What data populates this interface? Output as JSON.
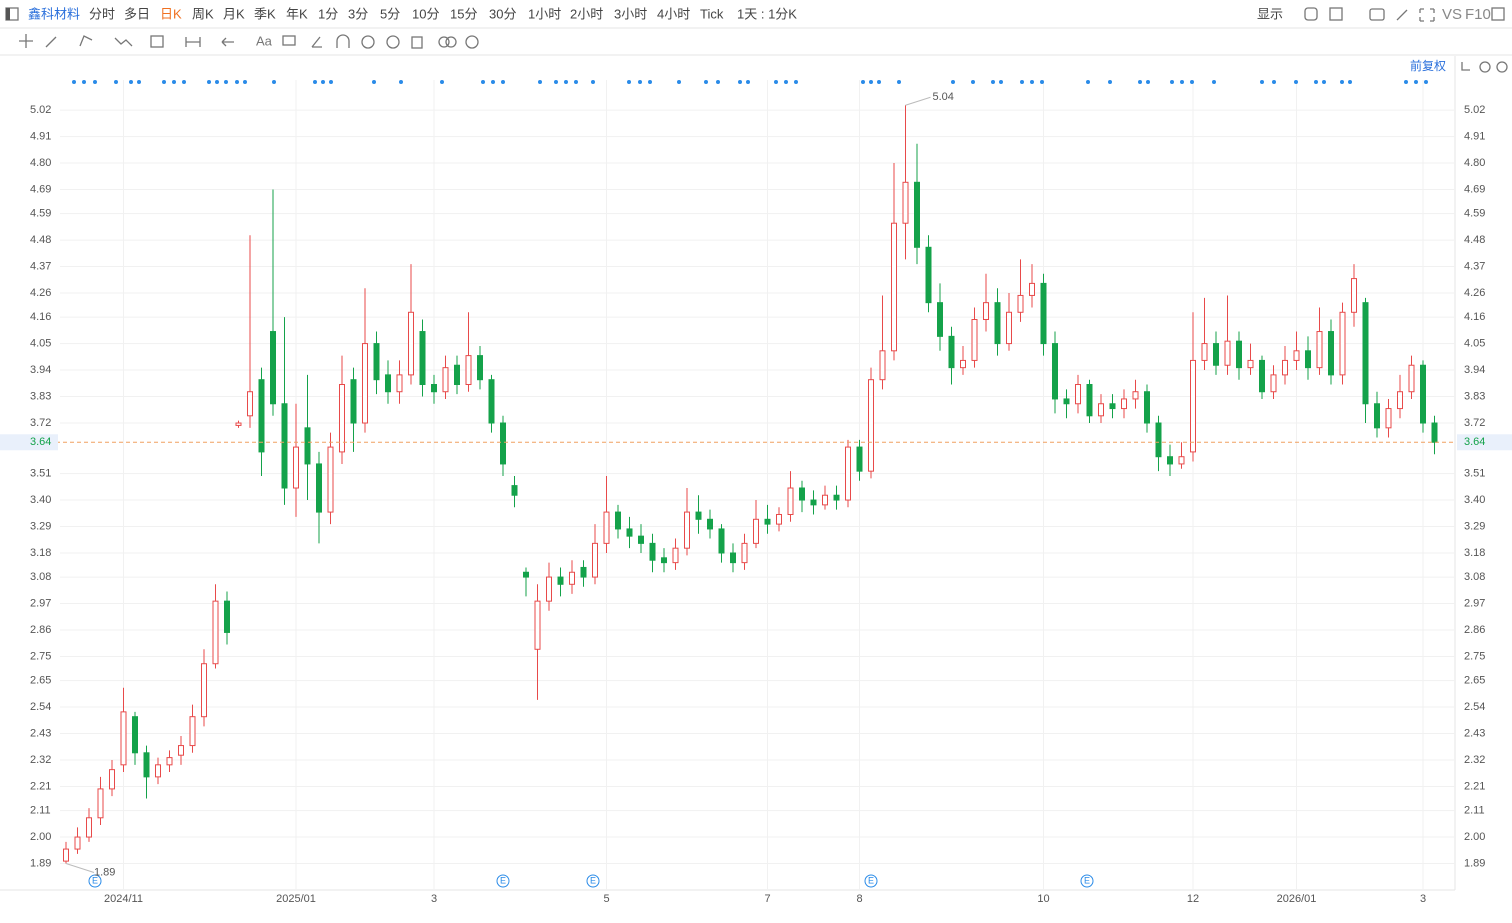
{
  "toolbar": {
    "symbol": "鑫科材料",
    "periods": [
      "分时",
      "多日",
      "日K",
      "周K",
      "月K",
      "季K",
      "年K",
      "1分",
      "3分",
      "5分",
      "10分",
      "15分",
      "30分",
      "1小时",
      "2小时",
      "3小时",
      "4小时",
      "Tick",
      "1天 : 1分K"
    ],
    "active_period": "日K",
    "display": "显示",
    "vs": "VS",
    "f10": "F10",
    "text_tool": "Aa",
    "adjust": "前复权"
  },
  "chart_data": {
    "type": "candlestick",
    "up_color": "#e84a4a",
    "down_color": "#14a24a",
    "last_price": 3.64,
    "last_price_color": "#f0a060",
    "high_label": 5.04,
    "low_label": 1.89,
    "event_label": "E",
    "grid": true,
    "ylim": [
      1.78,
      5.145
    ],
    "yticks": [
      5.02,
      4.91,
      {
        "value": 4.8,
        "label": "4.80"
      },
      4.69,
      4.59,
      4.48,
      4.37,
      4.26,
      4.16,
      4.05,
      3.94,
      3.83,
      3.72,
      3.51,
      {
        "value": 3.4,
        "label": "3.40"
      },
      3.29,
      3.18,
      3.08,
      2.97,
      2.86,
      2.75,
      2.65,
      2.54,
      2.43,
      2.32,
      2.21,
      2.11,
      {
        "value": 2,
        "label": "2.00"
      },
      1.89
    ],
    "categories": [
      null,
      null,
      null,
      null,
      null,
      "2024/11",
      null,
      null,
      null,
      null,
      null,
      null,
      null,
      null,
      null,
      null,
      null,
      null,
      null,
      null,
      "2025/01",
      null,
      null,
      null,
      null,
      null,
      null,
      null,
      null,
      null,
      null,
      null,
      "3",
      null,
      null,
      null,
      null,
      null,
      null,
      null,
      null,
      null,
      null,
      null,
      null,
      null,
      null,
      "5",
      null,
      null,
      null,
      null,
      null,
      null,
      null,
      null,
      null,
      null,
      null,
      null,
      null,
      "7",
      null,
      null,
      null,
      null,
      null,
      null,
      null,
      "8",
      null,
      null,
      null,
      null,
      null,
      null,
      null,
      null,
      null,
      null,
      null,
      null,
      null,
      null,
      null,
      "10",
      null,
      null,
      null,
      null,
      null,
      null,
      null,
      null,
      null,
      null,
      null,
      null,
      "12",
      null,
      null,
      null,
      null,
      null,
      null,
      null,
      null,
      "2026/01",
      null,
      null,
      null,
      null,
      null,
      null,
      null,
      null,
      null,
      null,
      "3",
      null
    ],
    "open": [
      1.9,
      1.95,
      2.0,
      2.08,
      2.2,
      2.3,
      2.5,
      2.35,
      2.25,
      2.3,
      2.34,
      2.38,
      2.5,
      2.72,
      2.98,
      3.71,
      3.75,
      3.9,
      4.1,
      3.8,
      3.45,
      3.7,
      3.55,
      3.35,
      3.6,
      3.9,
      3.72,
      4.05,
      3.92,
      3.85,
      3.92,
      4.1,
      3.88,
      3.85,
      3.96,
      3.88,
      4.0,
      3.9,
      3.72,
      3.46,
      3.1,
      2.78,
      2.98,
      3.08,
      3.05,
      3.12,
      3.08,
      3.22,
      3.35,
      3.28,
      3.25,
      3.22,
      3.16,
      3.14,
      3.2,
      3.35,
      3.32,
      3.28,
      3.18,
      3.14,
      3.22,
      3.32,
      3.3,
      3.34,
      3.45,
      3.4,
      3.38,
      3.42,
      3.4,
      3.62,
      3.52,
      3.9,
      4.02,
      4.55,
      4.72,
      4.45,
      4.22,
      4.08,
      3.95,
      3.98,
      4.15,
      4.22,
      4.05,
      4.18,
      4.25,
      4.3,
      4.05,
      3.82,
      3.8,
      3.88,
      3.75,
      3.8,
      3.78,
      3.82,
      3.85,
      3.72,
      3.58,
      3.55,
      3.6,
      3.98,
      4.05,
      3.96,
      4.06,
      3.95,
      3.98,
      3.85,
      3.92,
      3.98,
      4.02,
      3.95,
      4.1,
      3.92,
      4.18,
      4.22,
      3.8,
      3.7,
      3.78,
      3.85,
      3.96,
      3.72
    ],
    "high": [
      1.98,
      2.04,
      2.12,
      2.25,
      2.32,
      2.62,
      2.52,
      2.38,
      2.33,
      2.36,
      2.42,
      2.55,
      2.78,
      3.05,
      3.02,
      3.73,
      4.5,
      3.95,
      4.69,
      4.16,
      3.8,
      3.92,
      3.6,
      3.68,
      4.0,
      3.95,
      4.28,
      4.1,
      3.98,
      3.98,
      4.38,
      4.15,
      3.92,
      4.0,
      4.0,
      4.18,
      4.04,
      3.92,
      3.75,
      3.5,
      3.12,
      3.05,
      3.14,
      3.12,
      3.15,
      3.15,
      3.3,
      3.5,
      3.38,
      3.33,
      3.3,
      3.26,
      3.2,
      3.24,
      3.45,
      3.42,
      3.36,
      3.3,
      3.22,
      3.26,
      3.4,
      3.38,
      3.37,
      3.52,
      3.48,
      3.44,
      3.46,
      3.46,
      3.65,
      3.65,
      3.95,
      4.25,
      4.8,
      5.04,
      4.88,
      4.5,
      4.3,
      4.12,
      4.04,
      4.2,
      4.34,
      4.28,
      4.26,
      4.4,
      4.38,
      4.34,
      4.1,
      3.86,
      3.92,
      3.9,
      3.84,
      3.84,
      3.86,
      3.9,
      3.88,
      3.75,
      3.63,
      3.64,
      4.18,
      4.24,
      4.1,
      4.25,
      4.1,
      4.05,
      4.0,
      3.96,
      4.04,
      4.1,
      4.08,
      4.2,
      4.15,
      4.22,
      4.38,
      4.24,
      3.85,
      3.82,
      3.92,
      4.0,
      3.98,
      3.75
    ],
    "low": [
      1.89,
      1.93,
      1.98,
      2.05,
      2.17,
      2.27,
      2.3,
      2.16,
      2.22,
      2.27,
      2.3,
      2.35,
      2.46,
      2.7,
      2.8,
      3.7,
      3.7,
      3.5,
      3.75,
      3.38,
      3.33,
      3.4,
      3.22,
      3.3,
      3.55,
      3.6,
      3.68,
      3.84,
      3.8,
      3.8,
      3.88,
      3.83,
      3.8,
      3.82,
      3.84,
      3.85,
      3.86,
      3.68,
      3.5,
      3.37,
      3.0,
      2.57,
      2.94,
      3.0,
      3.01,
      3.04,
      3.05,
      3.18,
      3.24,
      3.2,
      3.18,
      3.1,
      3.1,
      3.11,
      3.17,
      3.26,
      3.24,
      3.14,
      3.1,
      3.11,
      3.2,
      3.26,
      3.27,
      3.31,
      3.35,
      3.34,
      3.36,
      3.36,
      3.37,
      3.48,
      3.49,
      3.86,
      3.98,
      4.4,
      4.38,
      4.18,
      4.02,
      3.88,
      3.92,
      3.95,
      4.1,
      4.0,
      4.02,
      4.14,
      4.2,
      4.0,
      3.76,
      3.74,
      3.76,
      3.72,
      3.72,
      3.74,
      3.74,
      3.78,
      3.68,
      3.52,
      3.5,
      3.53,
      3.56,
      3.94,
      3.92,
      3.92,
      3.9,
      3.92,
      3.82,
      3.82,
      3.88,
      3.94,
      3.9,
      3.92,
      3.88,
      3.88,
      4.12,
      3.72,
      3.66,
      3.66,
      3.74,
      3.82,
      3.68,
      3.59
    ],
    "close": [
      1.95,
      2.0,
      2.08,
      2.2,
      2.28,
      2.52,
      2.35,
      2.25,
      2.3,
      2.33,
      2.38,
      2.5,
      2.72,
      2.98,
      2.85,
      3.72,
      3.85,
      3.6,
      3.8,
      3.45,
      3.62,
      3.55,
      3.35,
      3.62,
      3.88,
      3.72,
      4.05,
      3.9,
      3.85,
      3.92,
      4.18,
      3.88,
      3.85,
      3.95,
      3.88,
      4.0,
      3.9,
      3.72,
      3.55,
      3.42,
      3.08,
      2.98,
      3.08,
      3.05,
      3.1,
      3.08,
      3.22,
      3.35,
      3.28,
      3.25,
      3.22,
      3.15,
      3.14,
      3.2,
      3.35,
      3.32,
      3.28,
      3.18,
      3.14,
      3.22,
      3.32,
      3.3,
      3.34,
      3.45,
      3.4,
      3.38,
      3.42,
      3.4,
      3.62,
      3.52,
      3.9,
      4.02,
      4.55,
      4.72,
      4.45,
      4.22,
      4.08,
      3.95,
      3.98,
      4.15,
      4.22,
      4.05,
      4.18,
      4.25,
      4.3,
      4.05,
      3.82,
      3.8,
      3.88,
      3.75,
      3.8,
      3.78,
      3.82,
      3.85,
      3.72,
      3.58,
      3.55,
      3.58,
      3.98,
      4.05,
      3.96,
      4.06,
      3.95,
      3.98,
      3.85,
      3.92,
      3.98,
      4.02,
      3.95,
      4.1,
      3.92,
      4.18,
      4.32,
      3.8,
      3.7,
      3.78,
      3.85,
      3.96,
      3.72,
      3.64
    ]
  }
}
